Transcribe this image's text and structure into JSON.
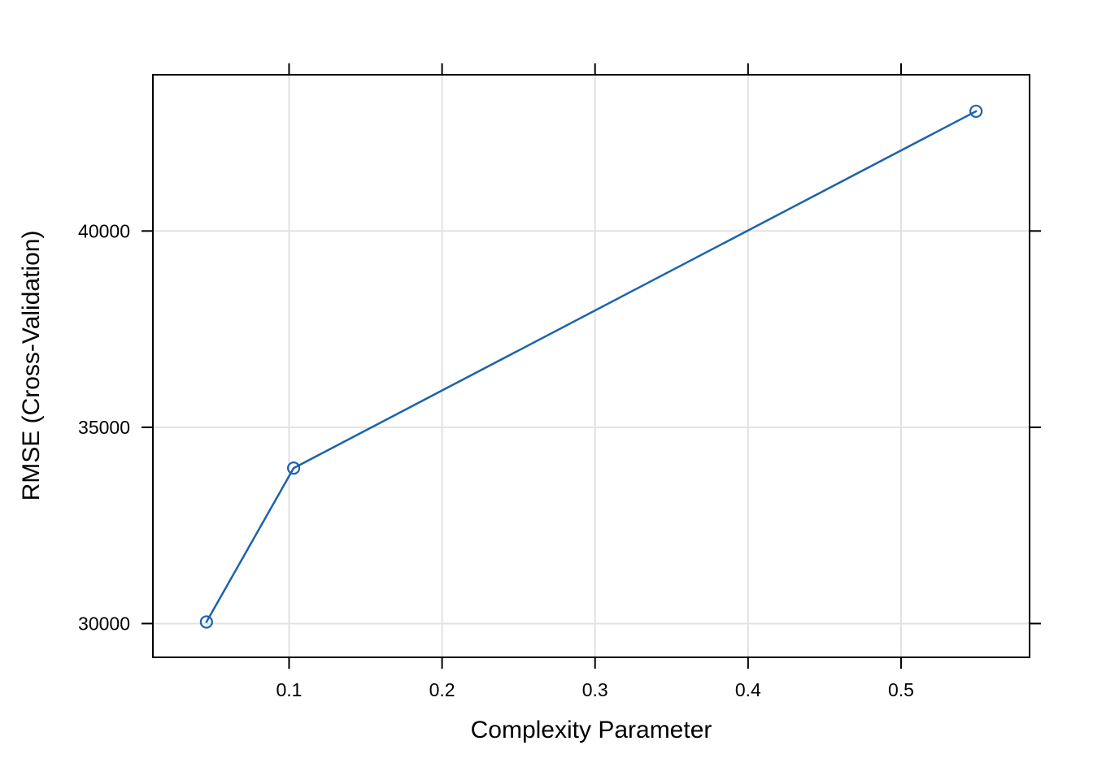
{
  "page": {
    "background": "#FFFFFF"
  },
  "chart_data": {
    "type": "line",
    "title": "",
    "xlabel": "Complexity Parameter",
    "ylabel": "RMSE (Cross-Validation)",
    "x": [
      0.046,
      0.103,
      0.549
    ],
    "y": [
      30040,
      33960,
      43050
    ],
    "series": [
      {
        "name": "RMSE (Cross-Validation)",
        "x": [
          0.046,
          0.103,
          0.549
        ],
        "values": [
          30040,
          33960,
          43050
        ]
      }
    ],
    "xticks": [
      0.1,
      0.2,
      0.3,
      0.4,
      0.5
    ],
    "xtick_labels": [
      "0.1",
      "0.2",
      "0.3",
      "0.4",
      "0.5"
    ],
    "yticks": [
      30000,
      35000,
      40000
    ],
    "ytick_labels": [
      "30000",
      "35000",
      "40000"
    ],
    "xlim": [
      0.011,
      0.584
    ],
    "ylim": [
      29140,
      43980
    ],
    "grid": true,
    "legend": "none",
    "marker": "open-circle",
    "line_style": "solid",
    "colors": {
      "line": "#1C63AA",
      "marker": "#1C63AA",
      "grid": "#E2E2E2",
      "axis": "#000000",
      "text": "#000000",
      "background": "#FFFFFF"
    }
  }
}
